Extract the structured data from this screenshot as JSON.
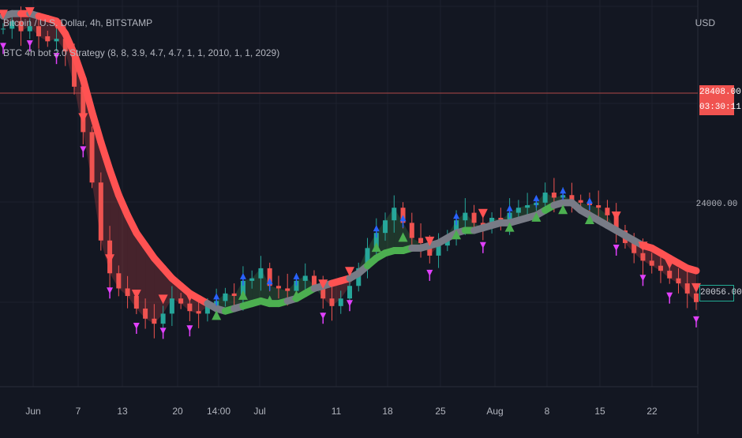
{
  "legend": {
    "symbol": "Bitcoin / U.S. Dollar, 4h, BITSTAMP",
    "indicator": "BTC 4h bot 2.0 Strategy (8, 8, 3.9, 4.7, 4.7, 1, 1, 2010, 1, 1, 2029)"
  },
  "currency": "USD",
  "tags": {
    "last_price": "28408.00",
    "countdown": "03:30:11",
    "current_price": "20056.00"
  },
  "colors": {
    "background": "#131722",
    "bull_band": "#4caf50",
    "bear_band": "#ff5252",
    "neutral_band": "#787b86",
    "long_marker": "#4caf50",
    "short_marker": "#ff5252",
    "exit_arrow": "#e040fb",
    "entry_arrow": "#2962ff",
    "candle_up": "#26a69a",
    "candle_down": "#ef5350"
  },
  "chart_data": {
    "type": "line",
    "title": "Bitcoin / U.S. Dollar, 4h, BITSTAMP",
    "x_ticks": [
      "Jun",
      "7",
      "13",
      "20",
      "14:00",
      "Jul",
      "11",
      "18",
      "25",
      "Aug",
      "8",
      "15",
      "22"
    ],
    "y_ticks": [
      "24000.00"
    ],
    "ylim": [
      17000,
      32500
    ],
    "grid": true,
    "series": [
      {
        "kind": "price",
        "values": [
          30900,
          31200,
          30800,
          31000,
          30600,
          30400,
          30500,
          30000,
          28600,
          26800,
          24800,
          22500,
          21200,
          20600,
          20300,
          19800,
          19400,
          19200,
          19600,
          20200,
          20000,
          19700,
          19600,
          19900,
          20100,
          20400,
          20300,
          20900,
          21000,
          21400,
          20700,
          20600,
          20500,
          20900,
          21100,
          20700,
          20200,
          19900,
          20200,
          20700,
          21400,
          22200,
          22800,
          23300,
          23800,
          23200,
          22600,
          22400,
          21900,
          22300,
          22700,
          23300,
          23600,
          23200,
          23000,
          23400,
          23300,
          23600,
          23800,
          23900,
          24000,
          24400,
          24200,
          24300,
          24100,
          24000,
          23900,
          23800,
          23500,
          22900,
          22400,
          22000,
          21700,
          21500,
          21300,
          21000,
          20800,
          20400,
          20056
        ]
      },
      {
        "kind": "trend-band",
        "values": [
          31400,
          31500,
          31500,
          31500,
          31400,
          31300,
          31200,
          30700,
          29900,
          28900,
          27600,
          26400,
          25300,
          24300,
          23500,
          22800,
          22300,
          21800,
          21400,
          21000,
          20700,
          20400,
          20200,
          20000,
          19800,
          19700,
          19800,
          19900,
          20000,
          20100,
          20000,
          20000,
          20100,
          20200,
          20400,
          20600,
          20700,
          20800,
          20900,
          21000,
          21200,
          21500,
          21800,
          22000,
          22100,
          22100,
          22200,
          22200,
          22300,
          22400,
          22600,
          22800,
          22900,
          22900,
          23000,
          23100,
          23200,
          23200,
          23300,
          23400,
          23500,
          23700,
          23900,
          24000,
          24000,
          23700,
          23500,
          23300,
          23100,
          22900,
          22700,
          22500,
          22300,
          22200,
          22000,
          21800,
          21600,
          21400,
          21300
        ]
      }
    ],
    "markers": [
      "S",
      "SS",
      "L",
      "LL",
      "SL"
    ]
  }
}
